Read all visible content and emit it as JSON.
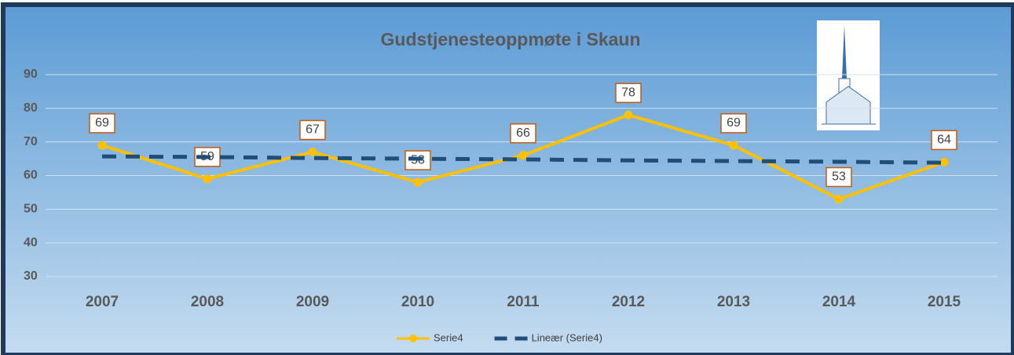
{
  "chart_data": {
    "type": "line",
    "title": "Gudstjenesteoppmøte i Skaun",
    "categories": [
      "2007",
      "2008",
      "2009",
      "2010",
      "2011",
      "2012",
      "2013",
      "2014",
      "2015"
    ],
    "series": [
      {
        "name": "Serie4",
        "color": "#ffc000",
        "values": [
          69,
          59,
          67,
          58,
          66,
          78,
          69,
          53,
          64
        ],
        "markers": true,
        "data_labels": true
      },
      {
        "name": "Lineær (Serie4)",
        "color": "#1f4e79",
        "values": [
          65.7,
          65.5,
          65.2,
          65.0,
          64.8,
          64.5,
          64.3,
          64.1,
          63.8
        ],
        "dashed": true
      }
    ],
    "ylim": [
      30,
      90
    ],
    "yticks": [
      30,
      40,
      50,
      60,
      70,
      80,
      90
    ],
    "grid": true,
    "legend": "bottom"
  }
}
